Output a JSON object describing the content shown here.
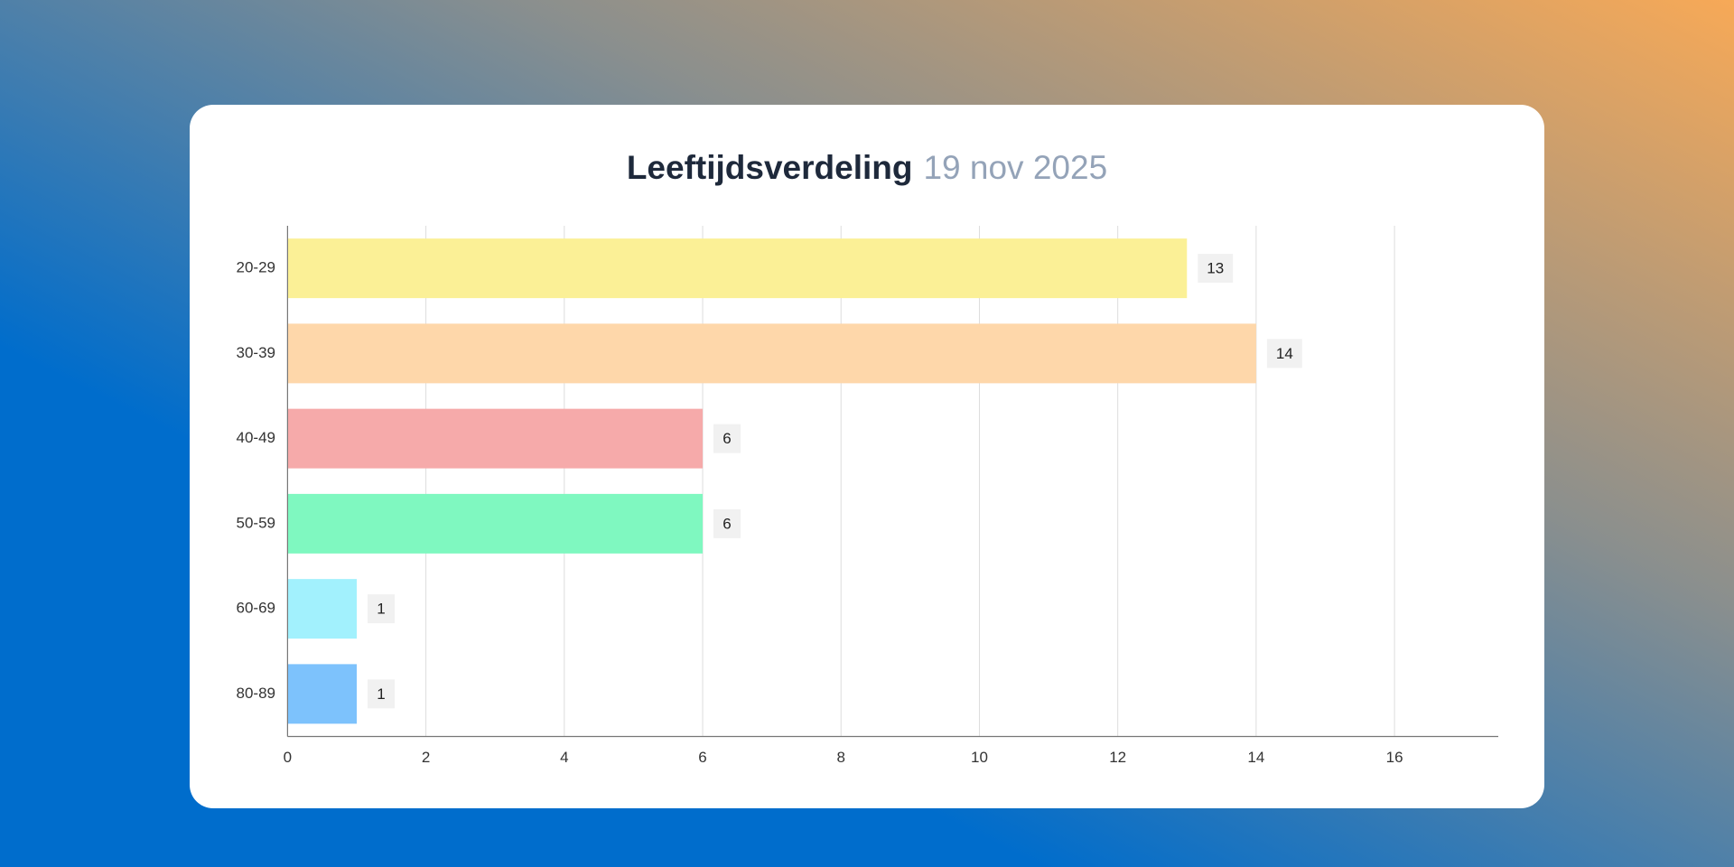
{
  "chart_data": {
    "type": "bar",
    "orientation": "horizontal",
    "title": "Leeftijdsverdeling",
    "subtitle": "19 nov 2025",
    "categories": [
      "20-29",
      "30-39",
      "40-49",
      "50-59",
      "60-69",
      "80-89"
    ],
    "values": [
      13,
      14,
      6,
      6,
      1,
      1
    ],
    "colors": [
      "#fbf096",
      "#fed7aa",
      "#f6aaaa",
      "#7ff8c0",
      "#a2f1fd",
      "#7dc2fc"
    ],
    "xlim": [
      0,
      17.5
    ],
    "xticks": [
      0,
      2,
      4,
      6,
      8,
      10,
      12,
      14,
      16
    ],
    "grid": true
  }
}
